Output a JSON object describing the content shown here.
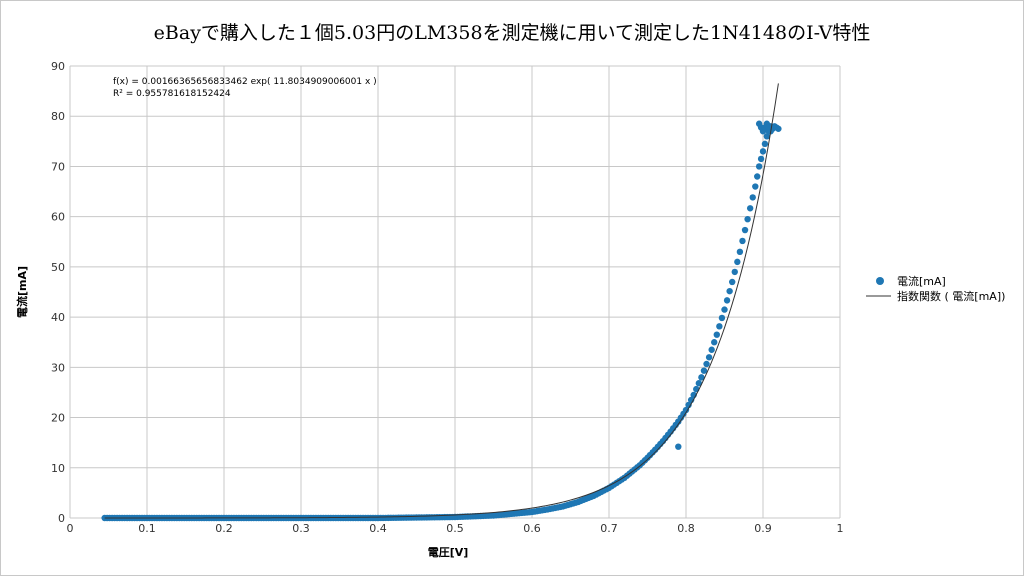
{
  "title": "eBayで購入した１個5.03円のLM358を測定機に用いて測定した1N4148のI-V特性",
  "colors": {
    "points": "#1f77b4",
    "fit_line": "#333333",
    "grid": "#c8c8c8"
  },
  "trendline": {
    "equation": "f(x) = 0.00166365656833462 exp( 11.8034909006001 x )",
    "r2_label": "R² = 0.955781618152424"
  },
  "chart_data": {
    "type": "scatter",
    "title": "eBayで購入した１個5.03円のLM358を測定機に用いて測定した1N4148のI-V特性",
    "xlabel": "電圧[V]",
    "ylabel": "電流[mA]",
    "xlim": [
      0,
      1
    ],
    "ylim": [
      0,
      90
    ],
    "x_ticks": [
      "0",
      "0.1",
      "0.2",
      "0.3",
      "0.4",
      "0.5",
      "0.6",
      "0.7",
      "0.8",
      "0.9",
      "1"
    ],
    "y_ticks": [
      "0",
      "10",
      "20",
      "30",
      "40",
      "50",
      "60",
      "70",
      "80",
      "90"
    ],
    "grid": true,
    "legend_position": "right",
    "series": [
      {
        "name": "電流[mA]",
        "kind": "points",
        "x": [
          0.045,
          0.1,
          0.2,
          0.3,
          0.4,
          0.45,
          0.5,
          0.55,
          0.6,
          0.62,
          0.64,
          0.66,
          0.68,
          0.7,
          0.72,
          0.74,
          0.75,
          0.76,
          0.77,
          0.78,
          0.79,
          0.8,
          0.81,
          0.82,
          0.83,
          0.84,
          0.85,
          0.86,
          0.87,
          0.88,
          0.89,
          0.895,
          0.9,
          0.905,
          0.91,
          0.79,
          0.895,
          0.9,
          0.905,
          0.91,
          0.915,
          0.92
        ],
        "y": [
          0,
          0,
          0,
          0,
          0,
          0.1,
          0.2,
          0.5,
          1.2,
          1.7,
          2.3,
          3.2,
          4.4,
          6.0,
          8.0,
          10.5,
          12.0,
          13.6,
          15.3,
          17.2,
          19.2,
          21.5,
          24.5,
          28.0,
          32.0,
          36.5,
          41.5,
          47.0,
          53.0,
          59.5,
          66.0,
          70.0,
          73.0,
          76.0,
          78.0,
          14.2,
          78.5,
          77.0,
          78.5,
          77.0,
          78.0,
          77.5
        ]
      },
      {
        "name": "指数関数 ( 電流[mA])",
        "kind": "line",
        "function": "exponential",
        "a": 0.00166365656833462,
        "b": 11.8034909006001,
        "x_range": [
          0.045,
          0.92
        ]
      }
    ]
  },
  "legend": [
    {
      "label": "電流[mA]",
      "marker": "point"
    },
    {
      "label": "指数関数 ( 電流[mA])",
      "marker": "line"
    }
  ]
}
